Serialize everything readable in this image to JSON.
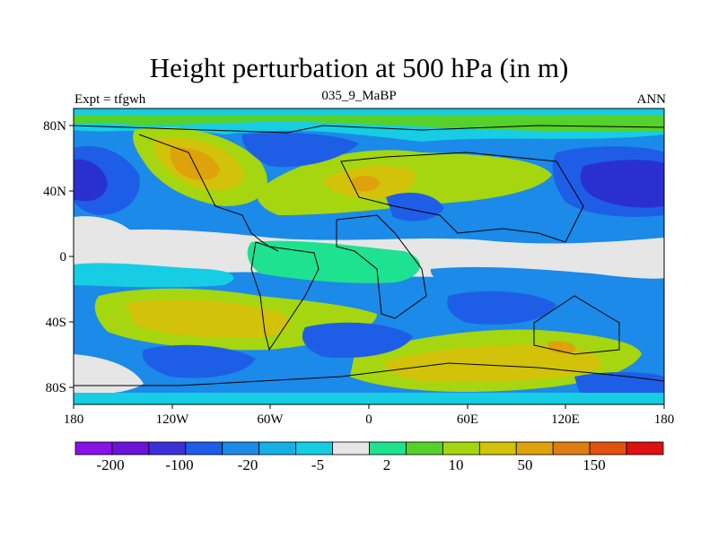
{
  "title": "Height perturbation at 500 hPa (in m)",
  "subtitle_left": "Expt = tfgwh",
  "subtitle_center": "035_9_MaBP",
  "subtitle_right": "ANN",
  "map": {
    "x_ticks": [
      "180",
      "120W",
      "60W",
      "0",
      "60E",
      "120E",
      "180"
    ],
    "y_ticks": [
      "80N",
      "40N",
      "0",
      "40S",
      "80S"
    ]
  },
  "colorbar": {
    "colors": [
      "#8a12e6",
      "#6b14d8",
      "#3b30d8",
      "#1e5ee6",
      "#1b8ae8",
      "#17b0e6",
      "#16cde3",
      "#e6e6e6",
      "#1ee28f",
      "#55d12a",
      "#a5d60f",
      "#d2c20a",
      "#dea20a",
      "#e07d12",
      "#e0520e",
      "#de1010"
    ],
    "labels": [
      "-200",
      "-100",
      "-20",
      "-5",
      "2",
      "10",
      "50",
      "150"
    ]
  },
  "palette": {
    "neg_strong": "#2a30d0",
    "neg_mid": "#1e5ee6",
    "neg_light": "#1b8ae8",
    "neg_faint": "#16cde3",
    "neutral": "#e6e6e6",
    "pos_faint": "#1ee28f",
    "pos_light": "#55d12a",
    "pos_mid": "#a5d60f",
    "pos_high": "#d2c20a",
    "pos_strong": "#dea20a",
    "pos_peak": "#e07d12"
  }
}
